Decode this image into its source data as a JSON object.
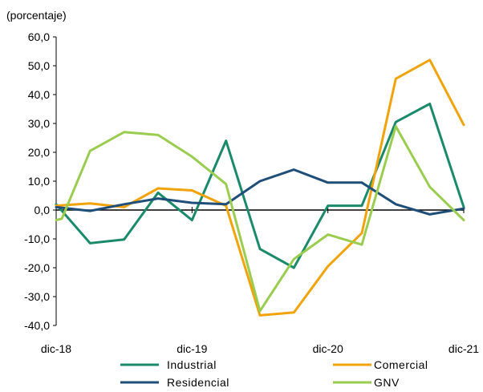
{
  "chart_data": {
    "type": "line",
    "unit_label": "(porcentaje)",
    "x_tick_labels": [
      "dic-18",
      "dic-19",
      "dic-20",
      "dic-21"
    ],
    "x": [
      0,
      1,
      2,
      3,
      4,
      5,
      6,
      7,
      8,
      9,
      10,
      11,
      12,
      13,
      14,
      15,
      16,
      17,
      18,
      19,
      20,
      21,
      22,
      23,
      24,
      25,
      26,
      27,
      28,
      29,
      30,
      31,
      32,
      33,
      34,
      35,
      36
    ],
    "x_note": "x is months after dic-18 (dic-18=0, dic-19=12, dic-20=24, dic-21=36)",
    "ylim": [
      -40,
      60
    ],
    "y_ticks": [
      "60,0",
      "50,0",
      "40,0",
      "30,0",
      "20,0",
      "10,0",
      "0,0",
      "-10,0",
      "-20,0",
      "-30,0",
      "-40,0"
    ],
    "series": [
      {
        "name": "Industrial",
        "color": "#1b8a6b",
        "points": [
          [
            0,
            2.0
          ],
          [
            3,
            -11.5
          ],
          [
            6,
            -10.2
          ],
          [
            9,
            6.0
          ],
          [
            12,
            -3.5
          ],
          [
            15,
            24.0
          ],
          [
            18,
            -13.5
          ],
          [
            21,
            -20.0
          ],
          [
            24,
            1.5
          ],
          [
            27,
            1.5
          ],
          [
            30,
            30.5
          ],
          [
            33,
            36.8
          ],
          [
            36,
            1.0
          ]
        ]
      },
      {
        "name": "Comercial",
        "color": "#f0a30a",
        "points": [
          [
            0,
            1.5
          ],
          [
            3,
            2.3
          ],
          [
            6,
            1.0
          ],
          [
            9,
            7.5
          ],
          [
            12,
            6.8
          ],
          [
            15,
            1.5
          ],
          [
            18,
            -36.5
          ],
          [
            21,
            -35.5
          ],
          [
            24,
            -19.5
          ],
          [
            27,
            -8.0
          ],
          [
            30,
            45.5
          ],
          [
            33,
            52.0
          ],
          [
            36,
            29.5
          ]
        ]
      },
      {
        "name": "Residencial",
        "color": "#1f4e79",
        "points": [
          [
            0,
            1.0
          ],
          [
            3,
            -0.3
          ],
          [
            6,
            2.0
          ],
          [
            9,
            4.0
          ],
          [
            12,
            2.5
          ],
          [
            15,
            2.0
          ],
          [
            18,
            10.0
          ],
          [
            21,
            14.0
          ],
          [
            24,
            9.5
          ],
          [
            27,
            9.5
          ],
          [
            30,
            2.0
          ],
          [
            33,
            -1.5
          ],
          [
            36,
            0.5
          ]
        ]
      },
      {
        "name": "GNV",
        "color": "#9acd4f",
        "points": [
          [
            0,
            -3.5
          ],
          [
            0.5,
            -3.0
          ],
          [
            3,
            20.5
          ],
          [
            6,
            27.0
          ],
          [
            9,
            26.0
          ],
          [
            12,
            18.5
          ],
          [
            15,
            9.0
          ],
          [
            18,
            -35.0
          ],
          [
            21,
            -17.0
          ],
          [
            24,
            -8.5
          ],
          [
            27,
            -12.0
          ],
          [
            30,
            29.0
          ],
          [
            33,
            8.0
          ],
          [
            36,
            -3.5
          ]
        ]
      }
    ],
    "legend_placement": "bottom",
    "grid": false
  }
}
